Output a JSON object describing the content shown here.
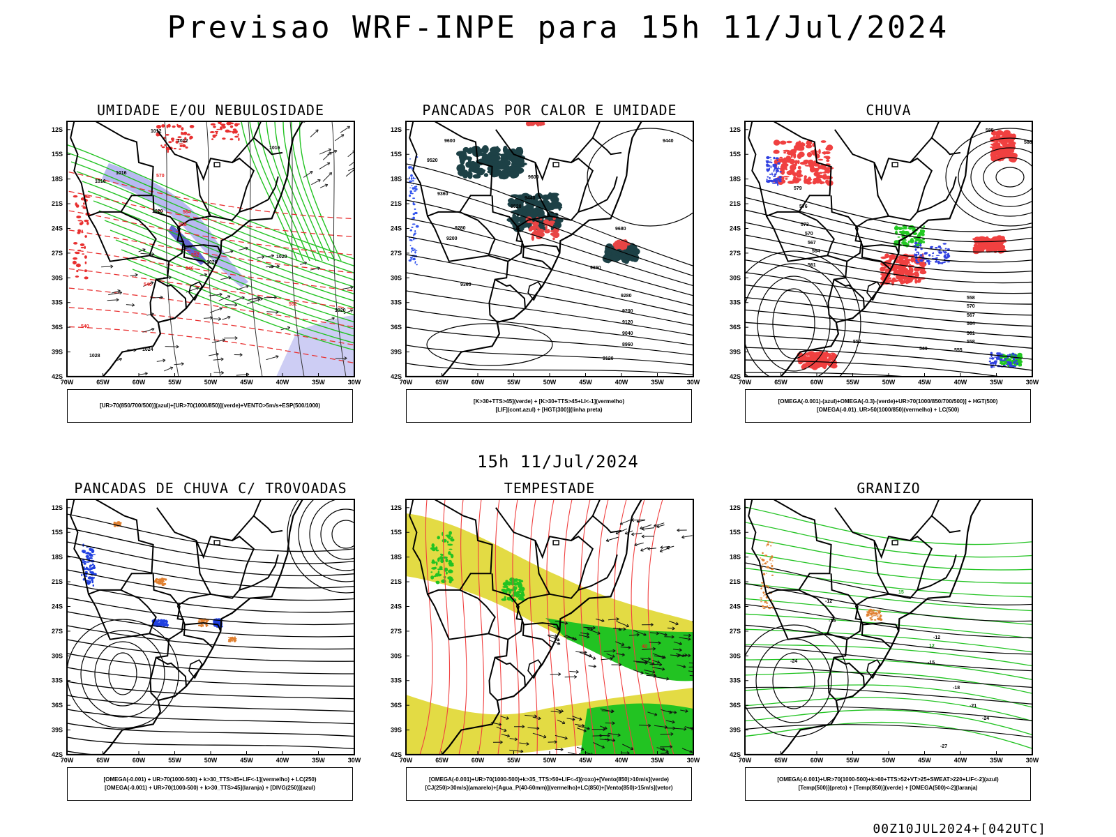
{
  "header": {
    "title": "Previsao WRF-INPE  para 15h 11/Jul/2024",
    "subtitle": "15h 11/Jul/2024",
    "footer": "00Z10JUL2024+[042UTC]"
  },
  "axes": {
    "lat_labels": [
      "12S",
      "15S",
      "18S",
      "21S",
      "24S",
      "27S",
      "30S",
      "33S",
      "36S",
      "39S",
      "42S"
    ],
    "lon_labels": [
      "70W",
      "65W",
      "60W",
      "55W",
      "50W",
      "45W",
      "40W",
      "35W",
      "30W"
    ]
  },
  "panels": [
    {
      "title": "UMIDADE E/OU NEBULOSIDADE",
      "legend": [
        "[UR>70(850/700/500)](azul)+[UR>70(1000/850)](verde)+VENTO>5m/s+ESP(500/1000)"
      ],
      "contour_labels": [
        "1012",
        "1012",
        "1016",
        "1016",
        "1016",
        "1020",
        "1020",
        "1020",
        "1020",
        "1024",
        "1028",
        "570",
        "564",
        "558",
        "552",
        "546",
        "540",
        "540",
        "552"
      ]
    },
    {
      "title": "PANCADAS POR CALOR E UMIDADE",
      "legend": [
        "[K>30+TTS>45](verde) + [K>30+TTS>45+LI<-1](vermelho)",
        "[LIF](cont.azul) + [HGT(300)](linha preta)"
      ],
      "contour_labels": [
        "9600",
        "9520",
        "9360",
        "9280",
        "9200",
        "9440",
        "9520",
        "9600",
        "9680",
        "9440",
        "9360",
        "9280",
        "9200",
        "9120",
        "9040",
        "8960",
        "9120",
        "9360"
      ]
    },
    {
      "title": "CHUVA",
      "legend": [
        "[OMEGA(-0.001)-(azul)+OMEGA(-0.3)-(verde)+UR>70(1000/850/700/500)] + HGT(500)",
        "[OMEGA(-0.01)_UR>50(1000/850)(vermelho) + LC(500)"
      ],
      "contour_labels": [
        "585",
        "588",
        "579",
        "576",
        "573",
        "570",
        "567",
        "564",
        "561",
        "558",
        "570",
        "567",
        "564",
        "561",
        "558",
        "555",
        "552",
        "549"
      ]
    },
    {
      "title": "PANCADAS DE CHUVA C/ TROVOADAS",
      "legend": [
        "[OMEGA(-0.001) + UR>70(1000-500) + k>30_TTS>45+LIF<-1](vermelho) + LC(250)",
        "[OMEGA(-0.001) + UR>70(1000-500) + k>30_TTS>45](laranja) + [DIVG(250)](azul)"
      ],
      "contour_labels": []
    },
    {
      "title": "TEMPESTADE",
      "legend": [
        "[OMEGA(-0.001)+UR>70(1000-500)+k>35_TTS>50+LIF<-4](roxo)+[Vento(850)>10m/s](verde)",
        "[CJ(250)>30m/s](amarelo)+[Agua_P(40-60mm)](vermelho)+LC(850)+[Vento(850)>15m/s](vetor)"
      ],
      "contour_labels": [
        "40"
      ]
    },
    {
      "title": "GRANIZO",
      "legend": [
        "[OMEGA(-0.001)+UR>70(1000-500)+k>60+TTS>52+VT>25+SWEAT>220+LIF<-2](azul)",
        "[Temp(500)](preto) + [Temp(850)](verde) + [OMEGA(500)<-2](laranja)"
      ],
      "contour_labels": [
        "-12",
        "-15",
        "15",
        "12",
        "-12",
        "-15",
        "-18",
        "-21",
        "-24",
        "-24",
        "-27"
      ]
    }
  ]
}
